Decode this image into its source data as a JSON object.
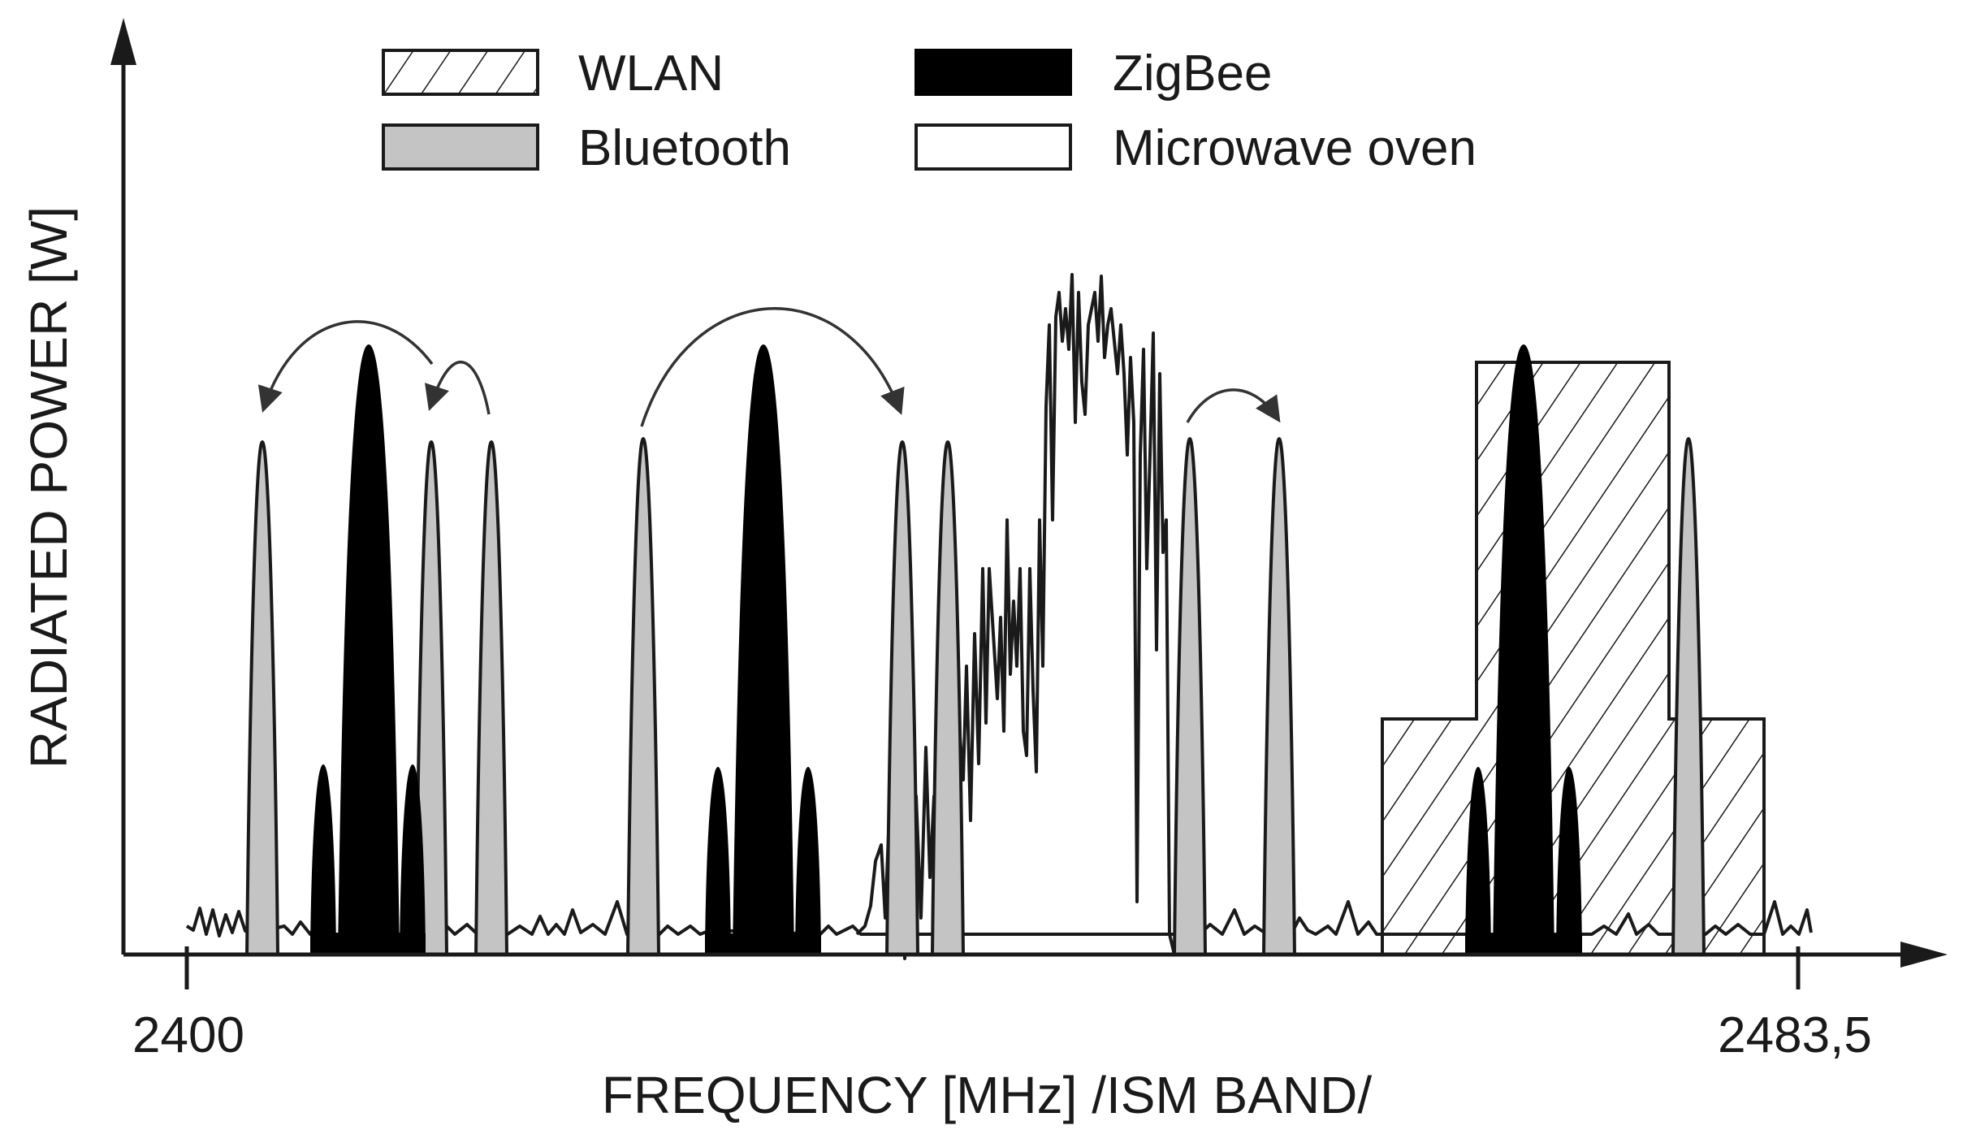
{
  "axes": {
    "x_label": "FREQUENCY [MHz] /ISM BAND/",
    "y_label": "RADIATED POWER [W]",
    "x_ticks": [
      "2400",
      "2483,5"
    ]
  },
  "legend": [
    {
      "key": "wlan",
      "label": "WLAN",
      "pattern": "diagonal-hatch"
    },
    {
      "key": "zigbee",
      "label": "ZigBee",
      "pattern": "solid-black"
    },
    {
      "key": "bluetooth",
      "label": "Bluetooth",
      "pattern": "solid-gray"
    },
    {
      "key": "microwave",
      "label": "Microwave oven",
      "pattern": "outline"
    }
  ],
  "colors": {
    "bluetooth": "#c4c4c4",
    "zigbee": "#000000",
    "line": "#1a1a1a",
    "background": "#ffffff"
  },
  "icons": {
    "hop_arrow": "curved-arrow-icon",
    "axis_arrow": "arrow-head-icon"
  }
}
